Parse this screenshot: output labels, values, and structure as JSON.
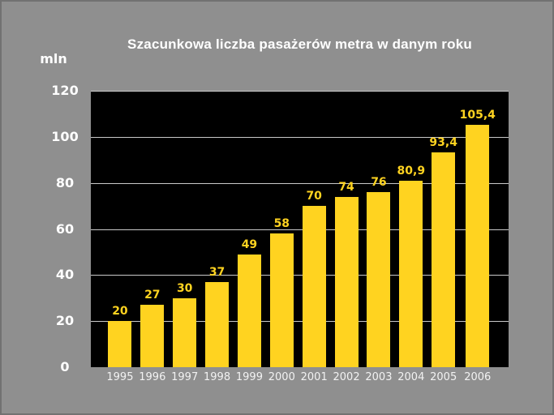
{
  "chart": {
    "title": "Szacunkowa liczba pasażerów metra w danym roku",
    "unit_label": "mln"
  },
  "chart_data": {
    "type": "bar",
    "title": "Szacunkowa liczba pasażerów metra w danym roku",
    "xlabel": "",
    "ylabel": "mln",
    "categories": [
      "1995",
      "1996",
      "1997",
      "1998",
      "1999",
      "2000",
      "2001",
      "2002",
      "2003",
      "2004",
      "2005",
      "2006"
    ],
    "values": [
      20,
      27,
      30,
      37,
      49,
      58,
      70,
      74,
      76,
      80.9,
      93.4,
      105.4
    ],
    "value_labels": [
      "20",
      "27",
      "30",
      "37",
      "49",
      "58",
      "70",
      "74",
      "76",
      "80,9",
      "93,4",
      "105,4"
    ],
    "ylim": [
      0,
      120
    ],
    "yticks": [
      0,
      20,
      40,
      60,
      80,
      100,
      120
    ],
    "grid": true,
    "legend_position": "none",
    "colors": {
      "background": "#8f8f8f",
      "plot_background": "#000000",
      "bar": "#ffd320",
      "value_label": "#ffd320",
      "axis_text": "#ffffff",
      "gridline": "#c9c9c9"
    }
  }
}
